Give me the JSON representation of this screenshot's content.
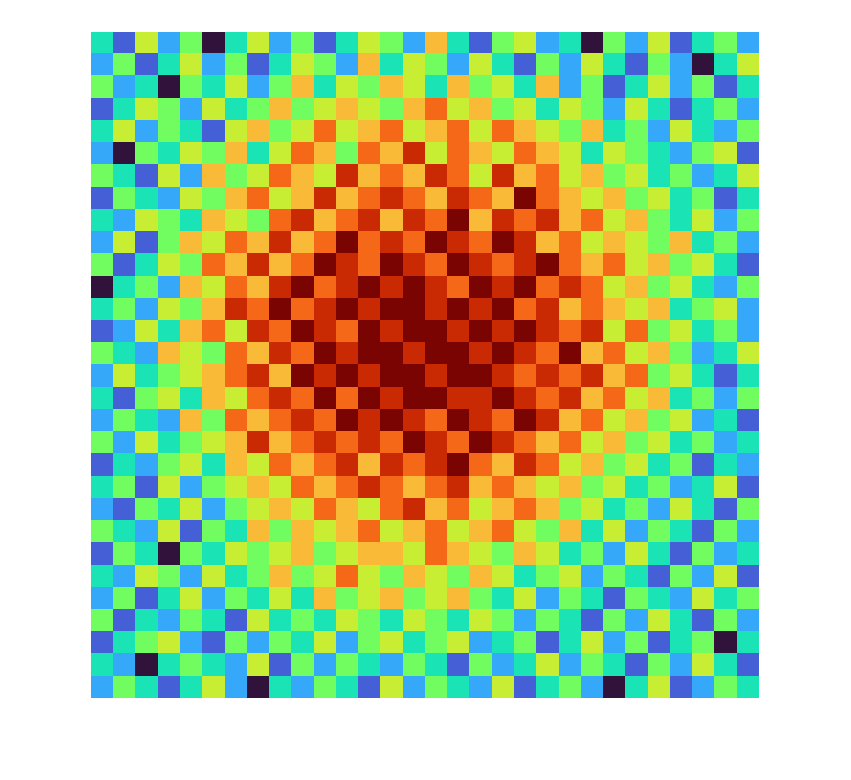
{
  "chart_data": {
    "type": "heatmap",
    "tick_labels": false,
    "cells": [
      [
        3,
        1,
        5,
        2,
        4,
        0,
        3,
        5,
        2,
        4,
        1,
        3,
        5,
        4,
        2,
        6,
        3,
        1,
        4,
        5,
        2,
        3,
        0,
        4,
        2,
        5,
        1,
        3,
        4,
        2
      ],
      [
        2,
        4,
        1,
        3,
        5,
        2,
        4,
        1,
        3,
        5,
        4,
        2,
        6,
        3,
        5,
        4,
        2,
        5,
        3,
        1,
        4,
        2,
        5,
        3,
        1,
        4,
        2,
        0,
        3,
        5
      ],
      [
        4,
        2,
        3,
        0,
        4,
        3,
        5,
        2,
        4,
        6,
        3,
        5,
        4,
        6,
        5,
        3,
        6,
        4,
        5,
        3,
        6,
        2,
        4,
        1,
        3,
        5,
        2,
        4,
        1,
        3
      ],
      [
        1,
        3,
        5,
        4,
        2,
        5,
        3,
        4,
        6,
        4,
        5,
        6,
        5,
        4,
        6,
        7,
        5,
        6,
        4,
        5,
        3,
        5,
        4,
        2,
        5,
        3,
        1,
        3,
        4,
        2
      ],
      [
        3,
        5,
        2,
        4,
        3,
        1,
        5,
        6,
        4,
        5,
        7,
        5,
        6,
        7,
        5,
        6,
        7,
        5,
        7,
        6,
        5,
        4,
        6,
        3,
        4,
        2,
        5,
        3,
        2,
        4
      ],
      [
        2,
        0,
        4,
        3,
        5,
        4,
        6,
        3,
        5,
        7,
        6,
        4,
        7,
        6,
        8,
        5,
        7,
        6,
        5,
        7,
        6,
        5,
        3,
        5,
        4,
        3,
        2,
        4,
        5,
        1
      ],
      [
        4,
        3,
        1,
        5,
        2,
        6,
        4,
        5,
        7,
        6,
        5,
        8,
        6,
        7,
        6,
        8,
        7,
        5,
        8,
        6,
        7,
        5,
        6,
        4,
        5,
        3,
        4,
        2,
        3,
        5
      ],
      [
        1,
        4,
        3,
        2,
        5,
        4,
        6,
        7,
        5,
        6,
        8,
        6,
        7,
        8,
        7,
        6,
        8,
        7,
        6,
        9,
        7,
        6,
        5,
        6,
        4,
        5,
        3,
        4,
        1,
        3
      ],
      [
        3,
        2,
        5,
        4,
        3,
        6,
        5,
        4,
        7,
        8,
        6,
        7,
        8,
        6,
        8,
        7,
        9,
        6,
        8,
        7,
        8,
        6,
        7,
        5,
        6,
        4,
        3,
        5,
        2,
        4
      ],
      [
        2,
        5,
        1,
        4,
        6,
        5,
        7,
        6,
        8,
        6,
        7,
        9,
        7,
        8,
        7,
        9,
        8,
        7,
        9,
        8,
        6,
        7,
        5,
        6,
        5,
        4,
        6,
        3,
        4,
        2
      ],
      [
        4,
        1,
        3,
        5,
        4,
        7,
        6,
        8,
        6,
        7,
        9,
        8,
        7,
        9,
        8,
        7,
        9,
        8,
        7,
        8,
        9,
        7,
        6,
        7,
        5,
        6,
        4,
        5,
        3,
        1
      ],
      [
        0,
        3,
        4,
        2,
        6,
        5,
        7,
        6,
        8,
        9,
        7,
        8,
        9,
        8,
        9,
        8,
        7,
        9,
        8,
        9,
        7,
        8,
        7,
        5,
        6,
        4,
        5,
        3,
        2,
        4
      ],
      [
        3,
        4,
        2,
        5,
        4,
        6,
        8,
        7,
        9,
        7,
        8,
        9,
        8,
        9,
        9,
        8,
        9,
        8,
        9,
        7,
        8,
        6,
        7,
        6,
        5,
        6,
        3,
        4,
        5,
        2
      ],
      [
        1,
        2,
        5,
        3,
        6,
        7,
        5,
        8,
        7,
        9,
        8,
        7,
        9,
        8,
        9,
        9,
        8,
        9,
        8,
        9,
        8,
        7,
        8,
        5,
        7,
        4,
        5,
        3,
        4,
        2
      ],
      [
        4,
        3,
        2,
        6,
        5,
        4,
        7,
        6,
        8,
        7,
        9,
        8,
        9,
        9,
        8,
        9,
        9,
        8,
        9,
        8,
        7,
        9,
        6,
        7,
        5,
        6,
        4,
        2,
        3,
        5
      ],
      [
        2,
        5,
        3,
        4,
        5,
        6,
        7,
        8,
        6,
        9,
        8,
        9,
        8,
        9,
        9,
        8,
        9,
        9,
        8,
        7,
        8,
        7,
        8,
        6,
        7,
        4,
        5,
        3,
        1,
        3
      ],
      [
        3,
        1,
        4,
        5,
        3,
        6,
        5,
        7,
        8,
        7,
        9,
        7,
        9,
        8,
        9,
        9,
        8,
        8,
        9,
        8,
        7,
        8,
        6,
        7,
        5,
        6,
        3,
        4,
        2,
        4
      ],
      [
        2,
        4,
        3,
        2,
        6,
        4,
        7,
        6,
        7,
        8,
        7,
        9,
        8,
        9,
        8,
        7,
        9,
        8,
        7,
        9,
        8,
        6,
        7,
        5,
        6,
        4,
        5,
        2,
        3,
        1
      ],
      [
        4,
        2,
        5,
        3,
        4,
        5,
        6,
        8,
        6,
        7,
        8,
        7,
        8,
        7,
        9,
        8,
        7,
        9,
        8,
        7,
        6,
        7,
        5,
        6,
        4,
        5,
        3,
        4,
        2,
        3
      ],
      [
        1,
        3,
        2,
        4,
        5,
        3,
        6,
        5,
        7,
        6,
        7,
        8,
        6,
        8,
        7,
        8,
        9,
        7,
        6,
        8,
        7,
        5,
        6,
        4,
        5,
        3,
        4,
        1,
        3,
        2
      ],
      [
        3,
        4,
        1,
        5,
        2,
        4,
        5,
        6,
        5,
        7,
        6,
        7,
        8,
        7,
        6,
        7,
        8,
        6,
        7,
        6,
        5,
        6,
        4,
        5,
        3,
        4,
        2,
        3,
        5,
        1
      ],
      [
        2,
        1,
        4,
        3,
        5,
        2,
        4,
        5,
        6,
        5,
        7,
        6,
        5,
        7,
        8,
        6,
        7,
        5,
        6,
        7,
        6,
        4,
        5,
        3,
        4,
        2,
        5,
        3,
        1,
        4
      ],
      [
        4,
        3,
        2,
        5,
        1,
        4,
        3,
        6,
        4,
        6,
        5,
        6,
        7,
        5,
        6,
        7,
        5,
        6,
        7,
        5,
        4,
        6,
        3,
        5,
        2,
        4,
        3,
        1,
        4,
        2
      ],
      [
        1,
        4,
        3,
        0,
        4,
        3,
        5,
        4,
        5,
        6,
        4,
        5,
        6,
        6,
        5,
        7,
        6,
        5,
        4,
        6,
        5,
        3,
        4,
        2,
        5,
        3,
        1,
        4,
        2,
        3
      ],
      [
        3,
        2,
        5,
        4,
        2,
        5,
        3,
        4,
        6,
        4,
        5,
        7,
        5,
        4,
        6,
        5,
        4,
        6,
        5,
        3,
        4,
        5,
        2,
        4,
        3,
        1,
        4,
        2,
        5,
        1
      ],
      [
        2,
        4,
        1,
        3,
        5,
        2,
        4,
        3,
        5,
        3,
        6,
        4,
        5,
        6,
        4,
        5,
        6,
        4,
        3,
        5,
        2,
        4,
        3,
        1,
        4,
        3,
        2,
        5,
        3,
        4
      ],
      [
        4,
        1,
        3,
        2,
        4,
        3,
        1,
        5,
        3,
        4,
        3,
        5,
        4,
        3,
        5,
        4,
        3,
        5,
        4,
        2,
        4,
        3,
        1,
        4,
        2,
        5,
        3,
        1,
        4,
        2
      ],
      [
        1,
        3,
        4,
        5,
        2,
        1,
        4,
        2,
        4,
        3,
        5,
        2,
        4,
        5,
        3,
        4,
        5,
        2,
        3,
        4,
        1,
        3,
        5,
        2,
        4,
        1,
        3,
        4,
        0,
        3
      ],
      [
        3,
        2,
        0,
        3,
        4,
        3,
        2,
        5,
        1,
        4,
        2,
        4,
        3,
        2,
        4,
        3,
        1,
        4,
        2,
        3,
        5,
        2,
        4,
        3,
        1,
        4,
        2,
        5,
        3,
        1
      ],
      [
        2,
        4,
        3,
        1,
        3,
        5,
        2,
        0,
        3,
        2,
        4,
        3,
        1,
        5,
        2,
        4,
        3,
        2,
        5,
        1,
        3,
        4,
        2,
        0,
        3,
        5,
        1,
        2,
        4,
        3
      ]
    ]
  }
}
